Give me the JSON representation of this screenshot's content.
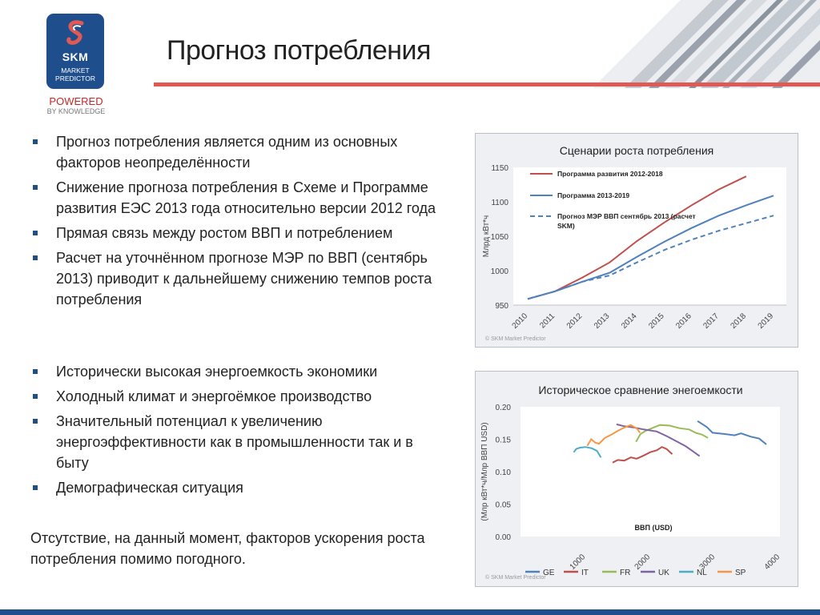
{
  "logo": {
    "brand": "SKM",
    "sub1": "MARKET",
    "sub2": "PREDICTOR"
  },
  "tagline": {
    "line1": "POWERED",
    "line2": "BY KNOWLEDGE"
  },
  "title": "Прогноз потребления",
  "bullets1": [
    "Прогноз потребления является одним из основных факторов неопределённости",
    "Снижение прогноза потребления в Схеме и Программе развития ЕЭС 2013 года относительно версии 2012 года",
    "Прямая связь между ростом ВВП и потреблением",
    "Расчет  на уточнённом прогнозе МЭР по ВВП (сентябрь 2013) приводит к дальнейшему снижению темпов роста потребления"
  ],
  "bullets2": [
    "Исторически высокая энергоемкость экономики",
    "Холодный климат и энергоёмкое производство",
    "Значительный потенциал к увеличению энергоэффективности как в промышленности так и в быту",
    "Демографическая ситуация"
  ],
  "note": "Отсутствие, на данный момент, факторов ускорения роста потребления помимо погодного.",
  "colors": {
    "brand_blue": "#1f4e8c",
    "accent_red": "#e05a55"
  },
  "chart_data": [
    {
      "type": "line",
      "title": "Сценарии роста потребления",
      "ylabel": "Млрд кВт*ч",
      "xlabel": "",
      "ylim": [
        950,
        1150
      ],
      "yticks": [
        "950",
        "1000",
        "1050",
        "1100",
        "1150"
      ],
      "x": [
        "2010",
        "2011",
        "2012",
        "2013",
        "2014",
        "2015",
        "2016",
        "2017",
        "2018",
        "2019"
      ],
      "grid": false,
      "legend": "top-left",
      "copyright": "© SKM Market Predictor",
      "series": [
        {
          "name": "Программа развития 2012-2018",
          "color": "#c0504d",
          "dash": false,
          "values": [
            959,
            970,
            990,
            1012,
            1043,
            1070,
            1095,
            1118,
            1137,
            null
          ]
        },
        {
          "name": "Программа 2013-2019",
          "color": "#4f81bd",
          "dash": false,
          "values": [
            959,
            970,
            984,
            997,
            1020,
            1042,
            1062,
            1080,
            1095,
            1109
          ]
        },
        {
          "name": "Прогноз МЭР ВВП сентябрь 2013 (расчет SKM)",
          "color": "#4f81bd",
          "dash": true,
          "values": [
            959,
            970,
            984,
            993,
            1012,
            1030,
            1045,
            1058,
            1069,
            1080
          ]
        }
      ]
    },
    {
      "type": "line",
      "title": "Историческое сравнение энегоемкости",
      "ylabel": "(Млр кВт*ч/Млр ВВП USD)",
      "xlabel": "ВВП (USD)",
      "ylim": [
        0,
        0.2
      ],
      "xlim": [
        0,
        4000
      ],
      "yticks": [
        "0.00",
        "0.05",
        "0.10",
        "0.15",
        "0.20"
      ],
      "xticks": [
        "1000",
        "2000",
        "3000",
        "4000"
      ],
      "xtick_values": [
        1000,
        2000,
        3000,
        4000
      ],
      "grid": false,
      "legend": "bottom",
      "copyright": "© SKM Market Predictor",
      "series": [
        {
          "name": "GE",
          "color": "#4f81bd",
          "points": [
            [
              2730,
              0.178
            ],
            [
              2870,
              0.169
            ],
            [
              2960,
              0.16
            ],
            [
              3150,
              0.158
            ],
            [
              3300,
              0.156
            ],
            [
              3400,
              0.159
            ],
            [
              3550,
              0.154
            ],
            [
              3680,
              0.151
            ],
            [
              3790,
              0.142
            ]
          ]
        },
        {
          "name": "IT",
          "color": "#c0504d",
          "points": [
            [
              1420,
              0.114
            ],
            [
              1500,
              0.118
            ],
            [
              1600,
              0.117
            ],
            [
              1700,
              0.122
            ],
            [
              1790,
              0.12
            ],
            [
              1900,
              0.125
            ],
            [
              2000,
              0.13
            ],
            [
              2100,
              0.133
            ],
            [
              2180,
              0.138
            ],
            [
              2250,
              0.135
            ],
            [
              2340,
              0.127
            ]
          ]
        },
        {
          "name": "FR",
          "color": "#9bbb59",
          "points": [
            [
              1780,
              0.146
            ],
            [
              1850,
              0.158
            ],
            [
              1930,
              0.163
            ],
            [
              2050,
              0.168
            ],
            [
              2150,
              0.172
            ],
            [
              2300,
              0.171
            ],
            [
              2450,
              0.167
            ],
            [
              2600,
              0.165
            ],
            [
              2700,
              0.16
            ],
            [
              2800,
              0.157
            ],
            [
              2890,
              0.152
            ]
          ]
        },
        {
          "name": "UK",
          "color": "#8064a2",
          "points": [
            [
              1480,
              0.173
            ],
            [
              1600,
              0.17
            ],
            [
              1750,
              0.168
            ],
            [
              1900,
              0.165
            ],
            [
              2100,
              0.162
            ],
            [
              2250,
              0.155
            ],
            [
              2400,
              0.147
            ],
            [
              2550,
              0.139
            ],
            [
              2650,
              0.132
            ],
            [
              2760,
              0.124
            ]
          ]
        },
        {
          "name": "NL",
          "color": "#4bacc6",
          "points": [
            [
              820,
              0.13
            ],
            [
              860,
              0.135
            ],
            [
              920,
              0.137
            ],
            [
              1000,
              0.138
            ],
            [
              1100,
              0.136
            ],
            [
              1180,
              0.132
            ],
            [
              1240,
              0.122
            ]
          ]
        },
        {
          "name": "SP",
          "color": "#f79646",
          "points": [
            [
              1030,
              0.14
            ],
            [
              1090,
              0.15
            ],
            [
              1150,
              0.145
            ],
            [
              1210,
              0.143
            ],
            [
              1300,
              0.152
            ],
            [
              1400,
              0.157
            ],
            [
              1500,
              0.163
            ],
            [
              1600,
              0.168
            ],
            [
              1700,
              0.172
            ],
            [
              1800,
              0.166
            ],
            [
              1840,
              0.16
            ]
          ]
        }
      ]
    }
  ]
}
